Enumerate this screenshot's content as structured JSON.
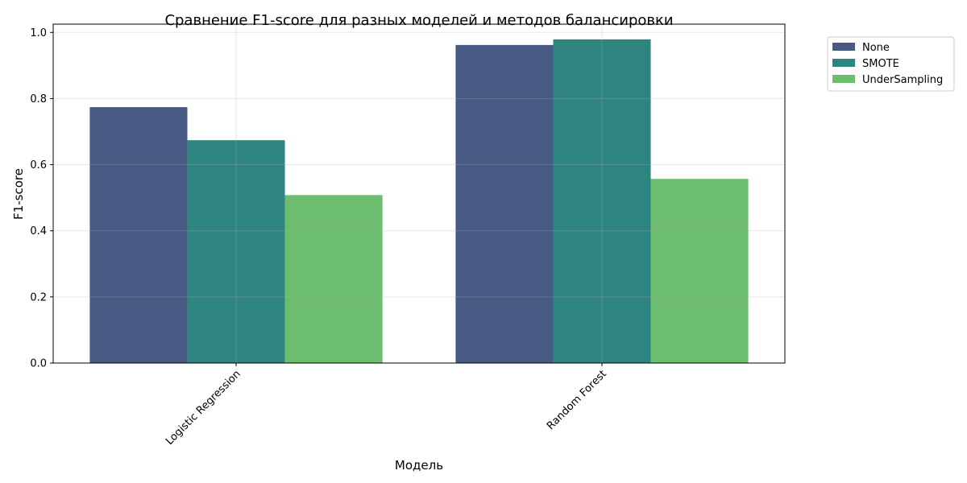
{
  "chart_data": {
    "type": "bar",
    "title": "Сравнение F1-score для разных моделей и методов балансировки",
    "xlabel": "Модель",
    "ylabel": "F1-score",
    "categories": [
      "Logistic Regression",
      "Random Forest"
    ],
    "series": [
      {
        "name": "None",
        "color": "#465a83",
        "values": [
          0.774,
          0.962
        ]
      },
      {
        "name": "SMOTE",
        "color": "#2e847e",
        "values": [
          0.674,
          0.979
        ]
      },
      {
        "name": "UnderSampling",
        "color": "#6cbd6d",
        "values": [
          0.508,
          0.557
        ]
      }
    ],
    "ylim": [
      0,
      1.025
    ],
    "yticks": [
      0.0,
      0.2,
      0.4,
      0.6,
      0.8,
      1.0
    ],
    "ytick_labels": [
      "0.0",
      "0.2",
      "0.4",
      "0.6",
      "0.8",
      "1.0"
    ],
    "grid": true,
    "legend_position": "outside-top-right"
  }
}
